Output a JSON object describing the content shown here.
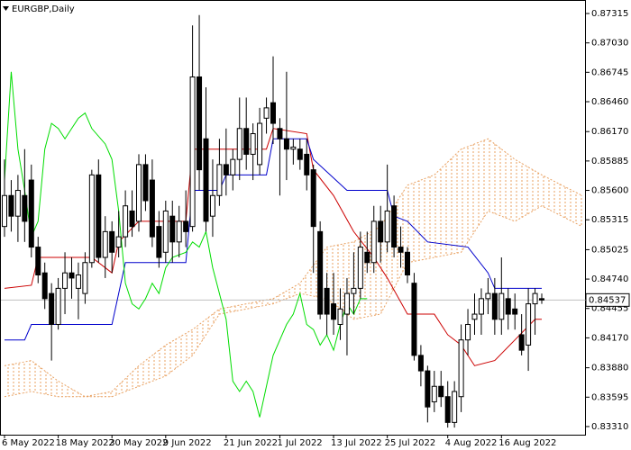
{
  "chart_data": {
    "type": "candlestick",
    "title": "EURGBP,Daily",
    "x": [
      "6 May 2022",
      null,
      null,
      null,
      null,
      null,
      null,
      null,
      "18 May 2022",
      null,
      null,
      null,
      null,
      null,
      null,
      null,
      "30 May 2022",
      null,
      null,
      null,
      null,
      null,
      null,
      null,
      "9 Jun 2022",
      null,
      null,
      null,
      null,
      null,
      null,
      null,
      null,
      "21 Jun 2022",
      null,
      null,
      null,
      null,
      null,
      null,
      null,
      "1 Jul 2022",
      null,
      null,
      null,
      null,
      null,
      null,
      null,
      "13 Jul 2022",
      null,
      null,
      null,
      null,
      null,
      null,
      null,
      "25 Jul 2022",
      null,
      null,
      null,
      null,
      null,
      null,
      null,
      null,
      "4 Aug 2022",
      null,
      null,
      null,
      null,
      null,
      null,
      null,
      "16 Aug 2022",
      null,
      null,
      null,
      null,
      null,
      null
    ],
    "open": [
      0.8525,
      0.8555,
      0.8535,
      0.8555,
      0.857,
      0.8505,
      0.848,
      0.846,
      0.843,
      0.8465,
      0.848,
      0.8465,
      0.846,
      0.849,
      0.8575,
      0.8495,
      0.852,
      0.8505,
      0.8515,
      0.854,
      0.853,
      0.8585,
      0.857,
      0.8525,
      0.85,
      0.8535,
      0.851,
      0.853,
      0.8525,
      0.867,
      0.861,
      0.8535,
      0.8555,
      0.8585,
      0.8575,
      0.859,
      0.862,
      0.8595,
      0.8585,
      0.863,
      0.8645,
      0.862,
      0.861,
      0.86,
      0.86,
      0.8595,
      0.858,
      0.852,
      0.8465,
      0.845,
      0.843,
      0.844,
      0.846,
      0.8465,
      0.85,
      0.849,
      0.853,
      0.851,
      0.8545,
      0.8505,
      0.85,
      0.847,
      0.84,
      0.8385,
      0.8355,
      0.837,
      0.836,
      0.8335,
      0.836,
      0.8415,
      0.8435,
      0.844,
      0.8455,
      0.846,
      0.8435,
      0.8455,
      0.8445,
      0.842,
      0.841,
      0.845,
      0.8455
    ],
    "high": [
      0.859,
      0.857,
      0.8575,
      0.86,
      0.8585,
      0.8515,
      0.849,
      0.847,
      0.8475,
      0.85,
      0.8495,
      0.849,
      0.85,
      0.858,
      0.859,
      0.8535,
      0.853,
      0.854,
      0.856,
      0.856,
      0.8595,
      0.8595,
      0.859,
      0.854,
      0.855,
      0.855,
      0.8545,
      0.856,
      0.872,
      0.873,
      0.866,
      0.859,
      0.861,
      0.862,
      0.86,
      0.865,
      0.865,
      0.8625,
      0.864,
      0.865,
      0.869,
      0.863,
      0.8675,
      0.861,
      0.861,
      0.861,
      0.8585,
      0.853,
      0.848,
      0.848,
      0.8465,
      0.8475,
      0.85,
      0.852,
      0.852,
      0.8545,
      0.8545,
      0.8585,
      0.8555,
      0.8525,
      0.8505,
      0.848,
      0.841,
      0.839,
      0.8385,
      0.8385,
      0.8375,
      0.8375,
      0.843,
      0.8445,
      0.846,
      0.8465,
      0.8475,
      0.8475,
      0.8495,
      0.8465,
      0.846,
      0.844,
      0.8465,
      0.8465,
      0.846
    ],
    "low": [
      0.8515,
      0.852,
      0.851,
      0.851,
      0.8495,
      0.847,
      0.8445,
      0.8395,
      0.8425,
      0.844,
      0.8455,
      0.8435,
      0.845,
      0.8485,
      0.849,
      0.8475,
      0.848,
      0.8495,
      0.8505,
      0.8515,
      0.852,
      0.854,
      0.8505,
      0.8485,
      0.849,
      0.849,
      0.8495,
      0.8505,
      0.852,
      0.856,
      0.852,
      0.8515,
      0.8545,
      0.8555,
      0.856,
      0.857,
      0.858,
      0.857,
      0.8575,
      0.8615,
      0.8605,
      0.8555,
      0.857,
      0.8585,
      0.858,
      0.856,
      0.848,
      0.8435,
      0.842,
      0.842,
      0.8415,
      0.84,
      0.844,
      0.8455,
      0.848,
      0.848,
      0.849,
      0.85,
      0.8495,
      0.8485,
      0.847,
      0.8395,
      0.837,
      0.8335,
      0.8345,
      0.835,
      0.833,
      0.833,
      0.8345,
      0.84,
      0.842,
      0.842,
      0.844,
      0.842,
      0.842,
      0.8425,
      0.8425,
      0.84,
      0.8385,
      0.842,
      0.845
    ],
    "close": [
      0.8555,
      0.8535,
      0.856,
      0.853,
      0.8505,
      0.8478,
      0.8455,
      0.843,
      0.8465,
      0.848,
      0.8475,
      0.8478,
      0.849,
      0.8575,
      0.8495,
      0.852,
      0.85,
      0.8515,
      0.8545,
      0.8525,
      0.8585,
      0.855,
      0.8515,
      0.8495,
      0.854,
      0.851,
      0.853,
      0.852,
      0.867,
      0.858,
      0.853,
      0.8555,
      0.8585,
      0.8575,
      0.859,
      0.862,
      0.8595,
      0.8615,
      0.8625,
      0.864,
      0.8625,
      0.861,
      0.86,
      0.8602,
      0.859,
      0.8575,
      0.8525,
      0.844,
      0.844,
      0.8435,
      0.8445,
      0.846,
      0.8465,
      0.8505,
      0.849,
      0.853,
      0.851,
      0.854,
      0.8505,
      0.85,
      0.8478,
      0.84,
      0.8385,
      0.835,
      0.837,
      0.836,
      0.8335,
      0.8365,
      0.8415,
      0.843,
      0.844,
      0.8455,
      0.846,
      0.8435,
      0.846,
      0.844,
      0.844,
      0.8405,
      0.845,
      0.846,
      0.84537
    ],
    "up_color": "#ffffff",
    "down_color": "#000000",
    "wick_color": "#000000",
    "ylim": [
      0.83231,
      0.87446
    ],
    "yticks": [
      0.87315,
      {
        "value": 0.8703,
        "label": "0.87030"
      },
      0.86745,
      {
        "value": 0.8646,
        "label": "0.86460"
      },
      {
        "value": 0.8617,
        "label": "0.86170"
      },
      0.85885,
      {
        "value": 0.856,
        "label": "0.85600"
      },
      0.85315,
      0.85025,
      {
        "value": 0.8474,
        "label": "0.84740"
      },
      0.84455,
      {
        "value": 0.8417,
        "label": "0.84170"
      },
      {
        "value": 0.8388,
        "label": "0.83880"
      },
      0.83595,
      {
        "value": 0.8331,
        "label": "0.83310"
      }
    ],
    "last_price": 0.84537,
    "overlays": [
      {
        "color": "#cc0000",
        "x": [
          0,
          4,
          5,
          13,
          16,
          17,
          20,
          27,
          28,
          39,
          40,
          45,
          46,
          49,
          52,
          55,
          57,
          60,
          64,
          66,
          68,
          70,
          73,
          76,
          79,
          80
        ],
        "values": [
          0.8465,
          0.8468,
          0.8495,
          0.8495,
          0.848,
          0.851,
          0.853,
          0.853,
          0.86,
          0.86,
          0.862,
          0.8615,
          0.858,
          0.8555,
          0.852,
          0.8495,
          0.8475,
          0.844,
          0.844,
          0.842,
          0.841,
          0.839,
          0.8395,
          0.8415,
          0.8435,
          0.8435
        ]
      },
      {
        "color": "#0000cc",
        "x": [
          0,
          3,
          4,
          16,
          17,
          18,
          27,
          28,
          32,
          33,
          39,
          40,
          45,
          46,
          51,
          57,
          58,
          60,
          63,
          69,
          72,
          73,
          80
        ],
        "values": [
          0.8415,
          0.8415,
          0.843,
          0.843,
          0.846,
          0.849,
          0.849,
          0.856,
          0.856,
          0.8575,
          0.8575,
          0.861,
          0.861,
          0.859,
          0.856,
          0.856,
          0.8535,
          0.853,
          0.851,
          0.8505,
          0.848,
          0.8465,
          0.8465
        ]
      },
      {
        "color": "#00dd00",
        "x": [
          0,
          1,
          2,
          3,
          4,
          5,
          6,
          7,
          8,
          9,
          10,
          11,
          12,
          13,
          15,
          16,
          17,
          18,
          19,
          20,
          21,
          22,
          23,
          24,
          25,
          27,
          28,
          29,
          30,
          31,
          33,
          34,
          35,
          36,
          37,
          38,
          39,
          40,
          41,
          42,
          43,
          44,
          45,
          46,
          47,
          48,
          49,
          50,
          51,
          52,
          53,
          54
        ],
        "values": [
          0.857,
          0.8675,
          0.86,
          0.856,
          0.8515,
          0.853,
          0.86,
          0.8625,
          0.862,
          0.861,
          0.862,
          0.863,
          0.8635,
          0.862,
          0.8605,
          0.859,
          0.854,
          0.847,
          0.845,
          0.8445,
          0.8455,
          0.847,
          0.846,
          0.8485,
          0.8495,
          0.85,
          0.851,
          0.8505,
          0.852,
          0.8485,
          0.8435,
          0.8375,
          0.8365,
          0.8375,
          0.8365,
          0.834,
          0.837,
          0.84,
          0.8415,
          0.843,
          0.844,
          0.846,
          0.843,
          0.8425,
          0.841,
          0.842,
          0.8405,
          0.843,
          0.845,
          0.844,
          0.8455,
          0.8455
        ]
      }
    ],
    "cloud": {
      "color": "#e8a060",
      "x": [
        0,
        4,
        8,
        12,
        16,
        20,
        24,
        28,
        32,
        36,
        40,
        44,
        48,
        52,
        56,
        60,
        64,
        68,
        72,
        76,
        80,
        86
      ],
      "span_a": [
        0.839,
        0.8395,
        0.8375,
        0.836,
        0.8365,
        0.839,
        0.841,
        0.8425,
        0.8445,
        0.845,
        0.8455,
        0.847,
        0.8505,
        0.851,
        0.8525,
        0.8565,
        0.8575,
        0.86,
        0.861,
        0.859,
        0.8575,
        0.8555
      ],
      "span_b": [
        0.836,
        0.8365,
        0.836,
        0.836,
        0.836,
        0.837,
        0.838,
        0.84,
        0.844,
        0.8445,
        0.845,
        0.846,
        0.8455,
        0.8435,
        0.844,
        0.849,
        0.8495,
        0.85,
        0.854,
        0.853,
        0.8545,
        0.8525
      ]
    }
  }
}
